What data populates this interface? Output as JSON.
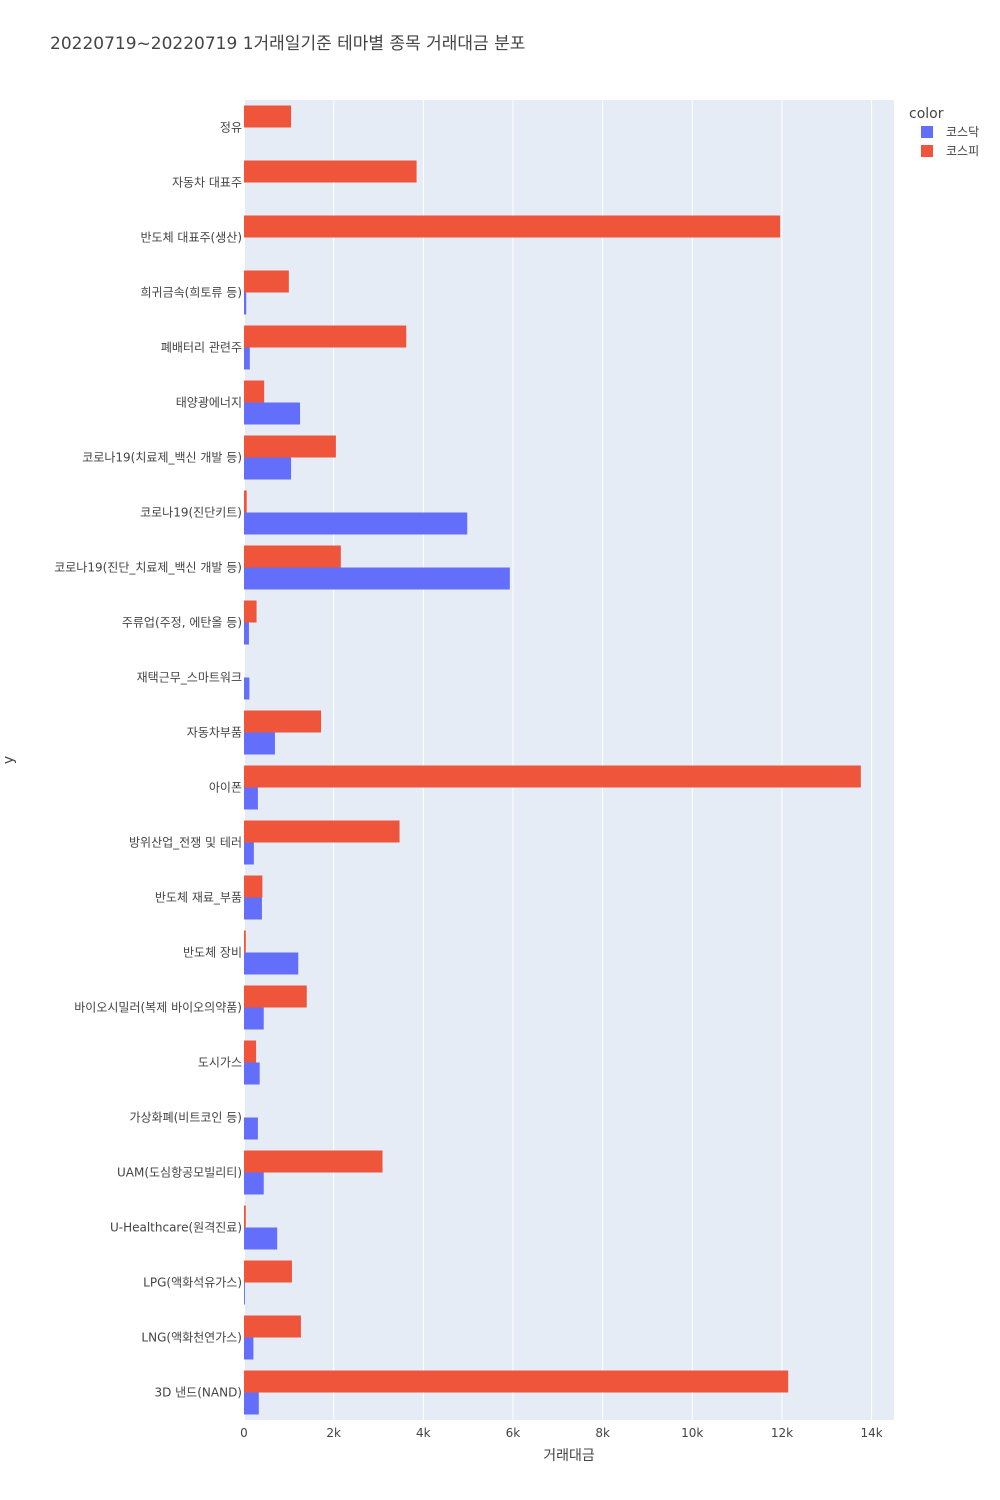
{
  "chart_data": {
    "type": "bar",
    "orientation": "horizontal",
    "barmode": "group",
    "title": "20220719~20220719 1거래일기준 테마별 종목 거래대금 분포",
    "xlabel": "거래대금",
    "ylabel": "y",
    "xlim": [
      0,
      14500
    ],
    "x_ticks": [
      {
        "value": 0,
        "label": "0"
      },
      {
        "value": 2000,
        "label": "2k"
      },
      {
        "value": 4000,
        "label": "4k"
      },
      {
        "value": 6000,
        "label": "6k"
      },
      {
        "value": 8000,
        "label": "8k"
      },
      {
        "value": 10000,
        "label": "10k"
      },
      {
        "value": 12000,
        "label": "12k"
      },
      {
        "value": 14000,
        "label": "14k"
      }
    ],
    "grid": true,
    "legend": {
      "title": "color",
      "placement": "top-right"
    },
    "categories": [
      "정유",
      "자동차 대표주",
      "반도체 대표주(생산)",
      "희귀금속(희토류 등)",
      "폐배터리 관련주",
      "태양광에너지",
      "코로나19(치료제_백신 개발 등)",
      "코로나19(진단키트)",
      "코로나19(진단_치료제_백신 개발 등)",
      "주류업(주정, 에탄올 등)",
      "재택근무_스마트워크",
      "자동차부품",
      "아이폰",
      "방위산업_전쟁 및 테러",
      "반도체 재료_부품",
      "반도체 장비",
      "바이오시밀러(복제 바이오의약품)",
      "도시가스",
      "가상화폐(비트코인 등)",
      "UAM(도심항공모빌리티)",
      "U-Healthcare(원격진료)",
      "LPG(액화석유가스)",
      "LNG(액화천연가스)",
      "3D 낸드(NAND)"
    ],
    "series": [
      {
        "name": "코스닥",
        "color": "#636efa",
        "values": [
          0,
          0,
          0,
          50,
          130,
          1250,
          1050,
          4980,
          5930,
          110,
          120,
          690,
          310,
          220,
          400,
          1210,
          440,
          350,
          310,
          440,
          740,
          20,
          210,
          330
        ]
      },
      {
        "name": "코스피",
        "color": "#ef553b",
        "values": [
          1050,
          3850,
          11960,
          1000,
          3620,
          450,
          2050,
          60,
          2160,
          280,
          0,
          1720,
          13760,
          3470,
          410,
          40,
          1400,
          270,
          0,
          3090,
          40,
          1070,
          1270,
          12140
        ]
      }
    ]
  }
}
